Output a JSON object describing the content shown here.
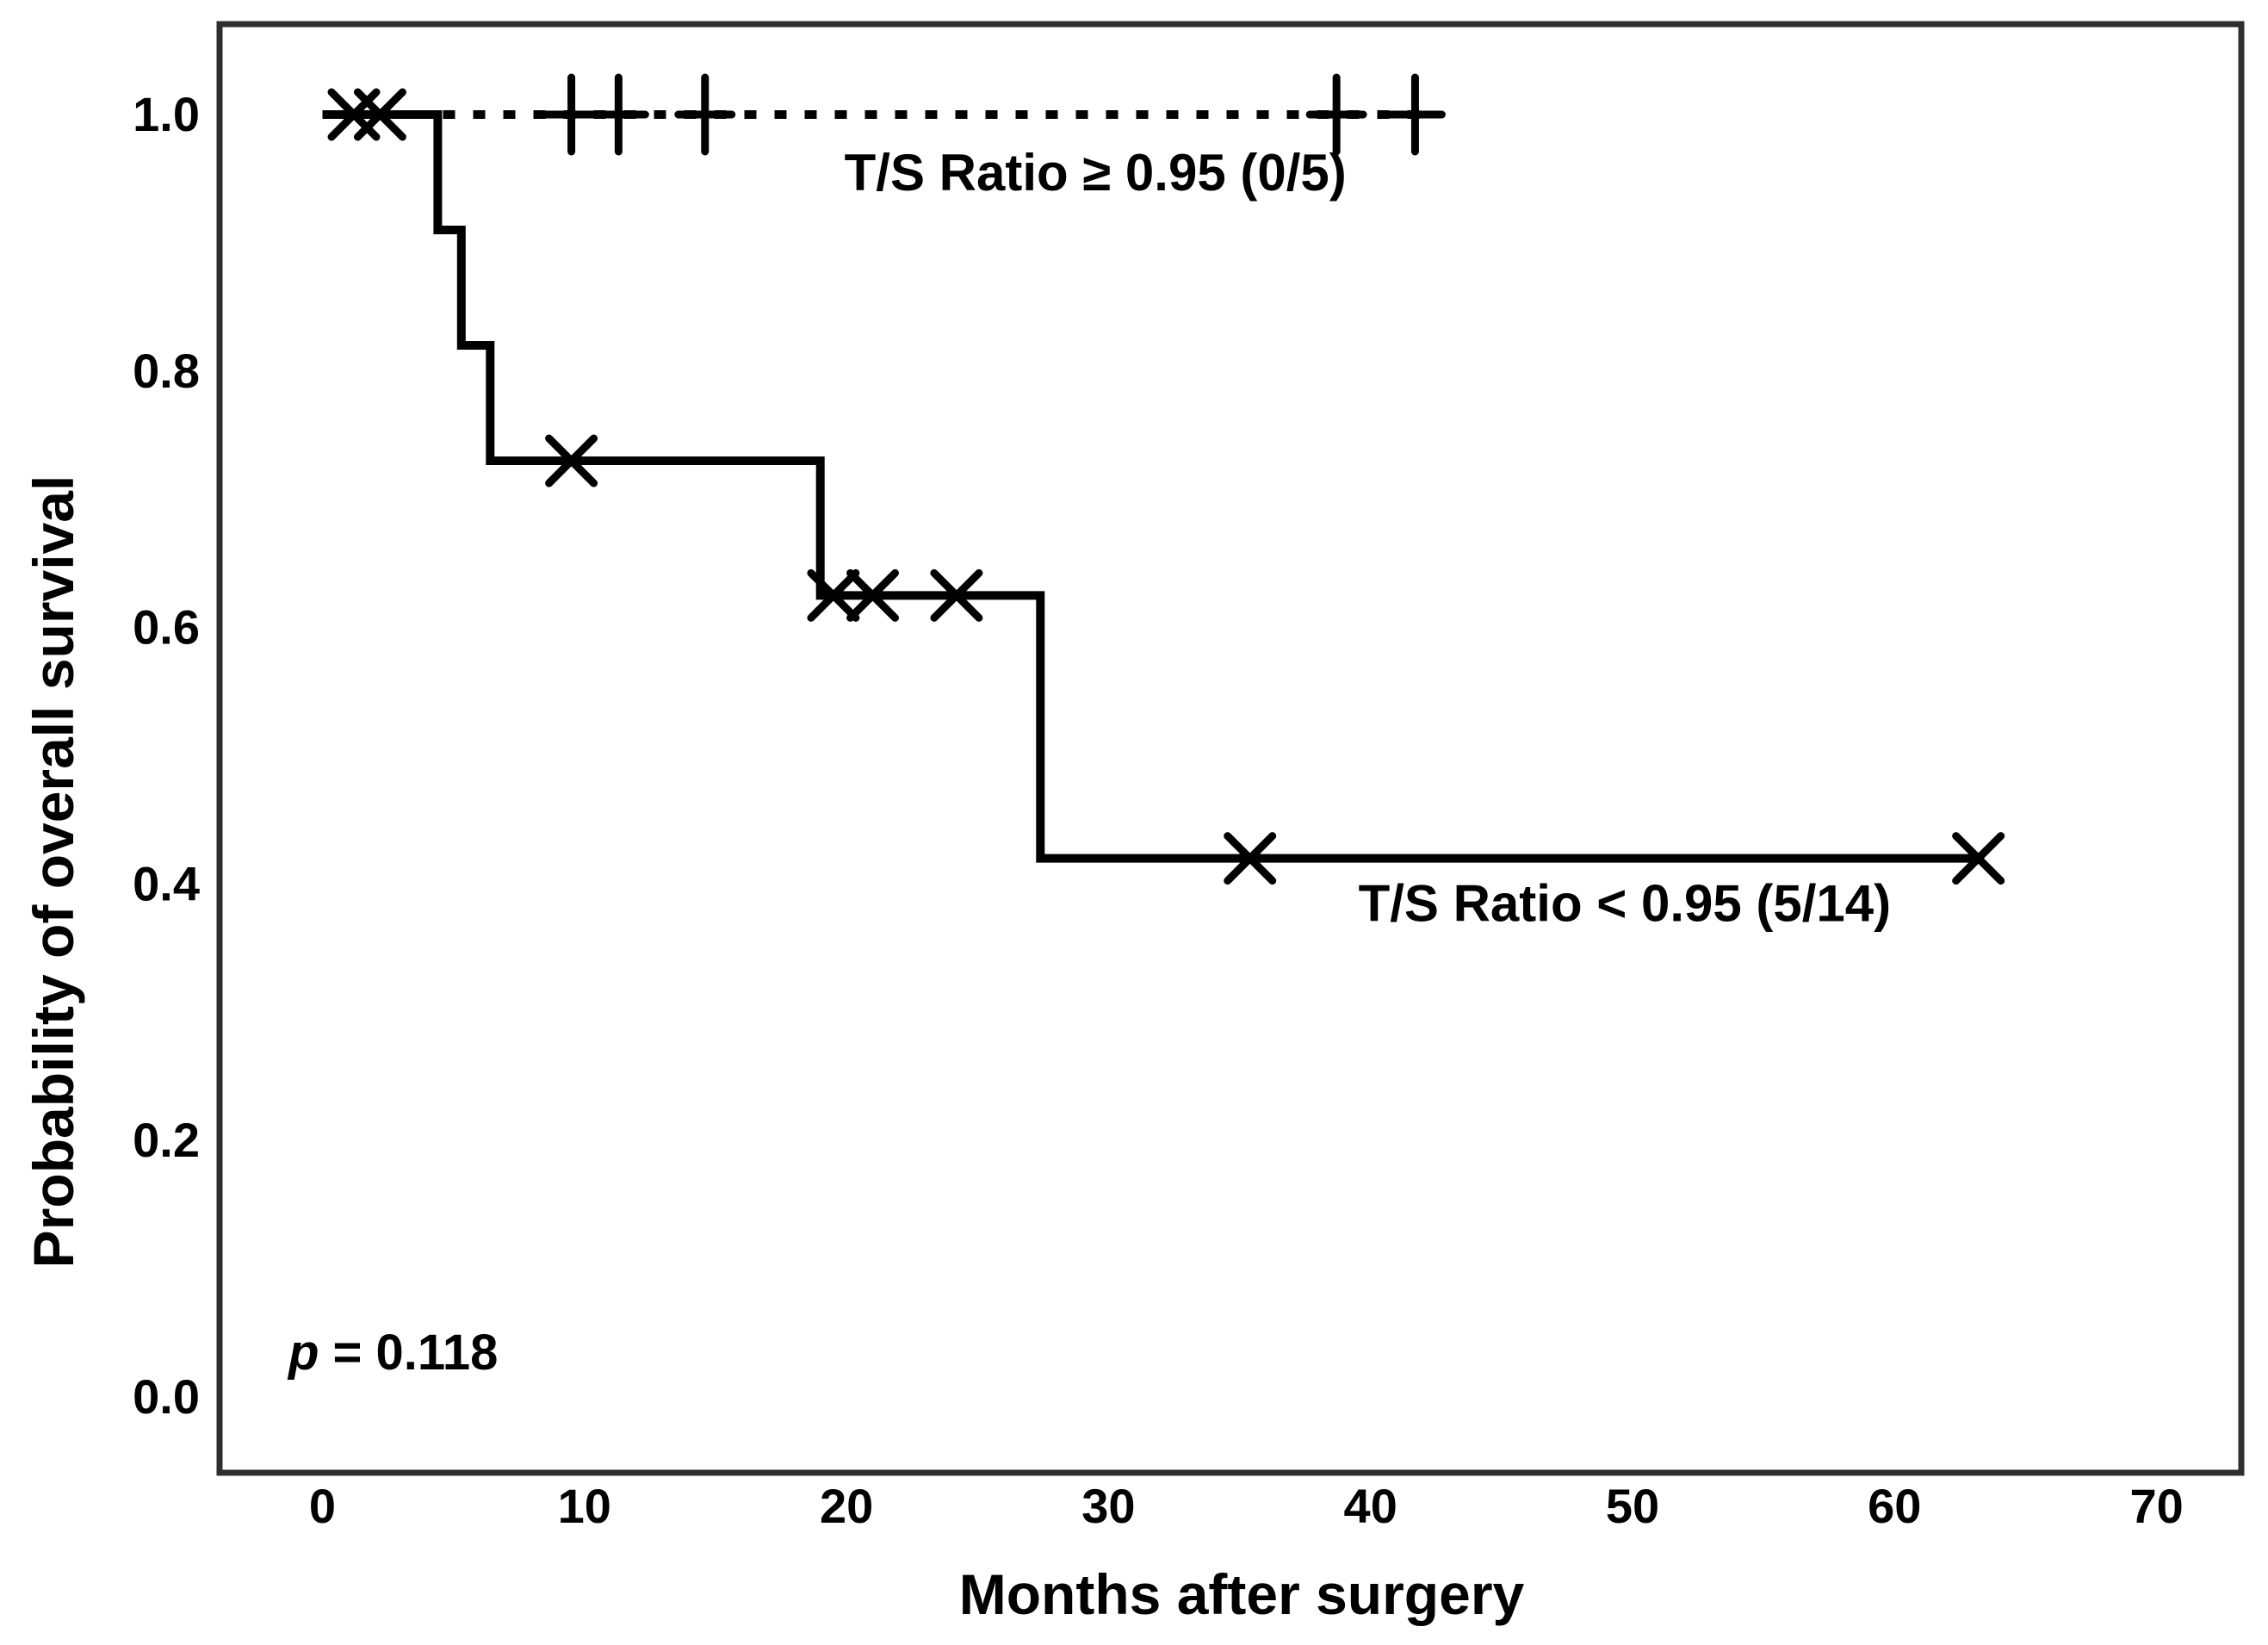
{
  "figure": {
    "background": "#ffffff",
    "foreground": "#000000"
  },
  "chart_data": {
    "type": "line",
    "subtype": "kaplan_meier_step",
    "title": "",
    "xlabel": "Months after surgery",
    "ylabel": "Probability of overall survival",
    "xlim": [
      0,
      70
    ],
    "ylim": [
      0.0,
      1.0
    ],
    "grid": false,
    "legend_position": "inline-annotations",
    "x_ticks": [
      0,
      10,
      20,
      30,
      40,
      50,
      60,
      70
    ],
    "x_tick_labels": [
      "0",
      "10",
      "20",
      "30",
      "40",
      "50",
      "60",
      "70"
    ],
    "y_ticks": [
      0.0,
      0.2,
      0.4,
      0.6,
      0.8,
      1.0
    ],
    "y_tick_labels": [
      "0.0",
      "0.2",
      "0.4",
      "0.6",
      "0.8",
      "1.0"
    ],
    "series": [
      {
        "name": "T/S Ratio ≥ 0.95 (0/5)",
        "group": "T/S Ratio ≥ 0.95",
        "events": "0/5",
        "line_style": "dashed",
        "censor_glyph": "plus",
        "steps": [
          [
            0,
            1.0
          ],
          [
            42.3,
            1.0
          ]
        ],
        "censors": [
          [
            9.5,
            1.0
          ],
          [
            11.3,
            1.0
          ],
          [
            14.6,
            1.0
          ],
          [
            38.7,
            1.0
          ],
          [
            41.7,
            1.0
          ]
        ]
      },
      {
        "name": "T/S Ratio < 0.95 (5/14)",
        "group": "T/S Ratio < 0.95",
        "events": "5/14",
        "line_style": "solid",
        "censor_glyph": "x",
        "steps": [
          [
            0,
            1.0
          ],
          [
            4.4,
            1.0
          ],
          [
            4.4,
            0.91
          ],
          [
            5.3,
            0.91
          ],
          [
            5.3,
            0.82
          ],
          [
            6.4,
            0.82
          ],
          [
            6.4,
            0.73
          ],
          [
            19.0,
            0.73
          ],
          [
            19.0,
            0.625
          ],
          [
            27.4,
            0.625
          ],
          [
            27.4,
            0.42
          ],
          [
            63.2,
            0.42
          ]
        ],
        "censors": [
          [
            1.2,
            1.0
          ],
          [
            2.2,
            1.0
          ],
          [
            9.5,
            0.73
          ],
          [
            19.5,
            0.625
          ],
          [
            21.0,
            0.625
          ],
          [
            24.2,
            0.625
          ],
          [
            35.4,
            0.42
          ],
          [
            63.2,
            0.42
          ]
        ]
      }
    ],
    "annotations": [
      {
        "id": "ge_label",
        "text": "T/S Ratio ≥ 0.95 (0/5)",
        "x": 29.5,
        "y": 0.955,
        "anchor": "middle"
      },
      {
        "id": "lt_label",
        "text": "T/S Ratio < 0.95 (5/14)",
        "x": 49.7,
        "y": 0.385,
        "anchor": "middle"
      },
      {
        "id": "p_label",
        "text": "p = 0.118",
        "italic_prefix": "p",
        "rest": " = 0.118",
        "x": -1.3,
        "y": 0.035,
        "anchor": "start"
      }
    ]
  }
}
